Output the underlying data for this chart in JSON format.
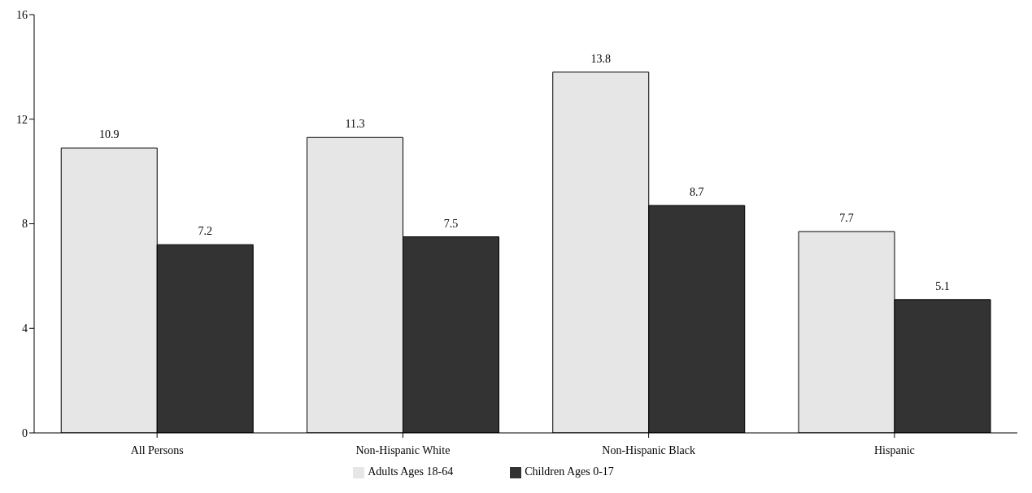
{
  "chart_data": {
    "type": "bar",
    "categories": [
      "All Persons",
      "Non-Hispanic White",
      "Non-Hispanic Black",
      "Hispanic"
    ],
    "series": [
      {
        "name": "Adults Ages 18-64",
        "color": "#e6e6e6",
        "values": [
          10.9,
          11.3,
          13.8,
          7.7
        ]
      },
      {
        "name": "Children Ages 0-17",
        "color": "#333333",
        "values": [
          7.2,
          7.5,
          8.7,
          5.1
        ]
      }
    ],
    "ylim": [
      0,
      16
    ],
    "yticks": [
      0,
      4,
      8,
      12,
      16
    ],
    "grid": false,
    "legend": "bottom",
    "data_labels": true
  }
}
